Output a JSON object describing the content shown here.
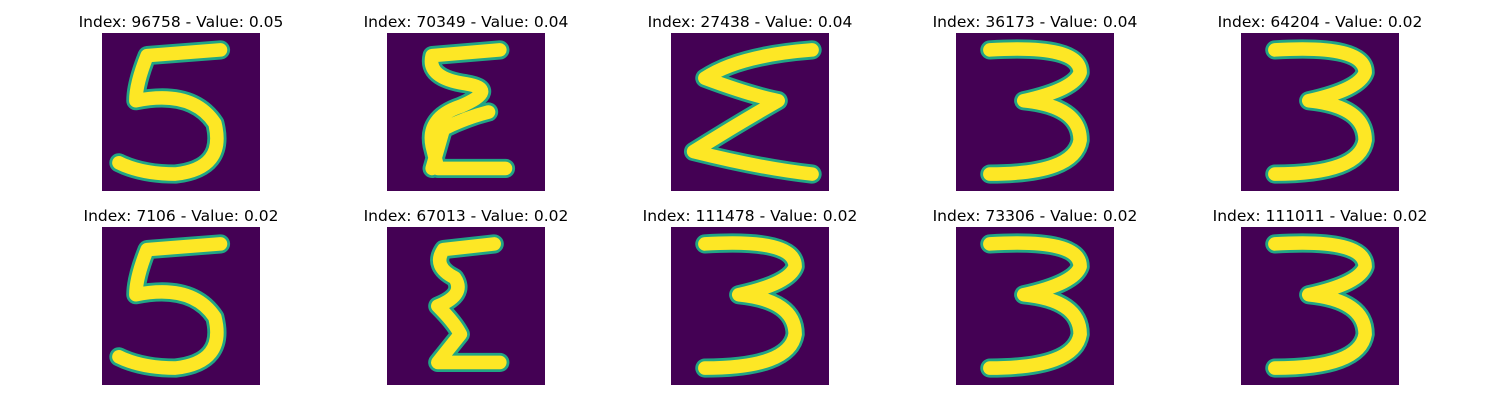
{
  "colors": {
    "background": "#440154",
    "stroke": "#fde725",
    "edge": "#21a585"
  },
  "tiles": [
    {
      "index": "96758",
      "value": "0.05",
      "digit": "5"
    },
    {
      "index": "70349",
      "value": "0.04",
      "digit": "E"
    },
    {
      "index": "27438",
      "value": "0.04",
      "digit": "sigma"
    },
    {
      "index": "36173",
      "value": "0.04",
      "digit": "3"
    },
    {
      "index": "64204",
      "value": "0.02",
      "digit": "3"
    },
    {
      "index": "7106",
      "value": "0.02",
      "digit": "5"
    },
    {
      "index": "67013",
      "value": "0.02",
      "digit": "z"
    },
    {
      "index": "111478",
      "value": "0.02",
      "digit": "3"
    },
    {
      "index": "73306",
      "value": "0.02",
      "digit": "3"
    },
    {
      "index": "111011",
      "value": "0.02",
      "digit": "3"
    }
  ],
  "title_template": {
    "prefix": "Index: ",
    "middle": " - Value: "
  }
}
